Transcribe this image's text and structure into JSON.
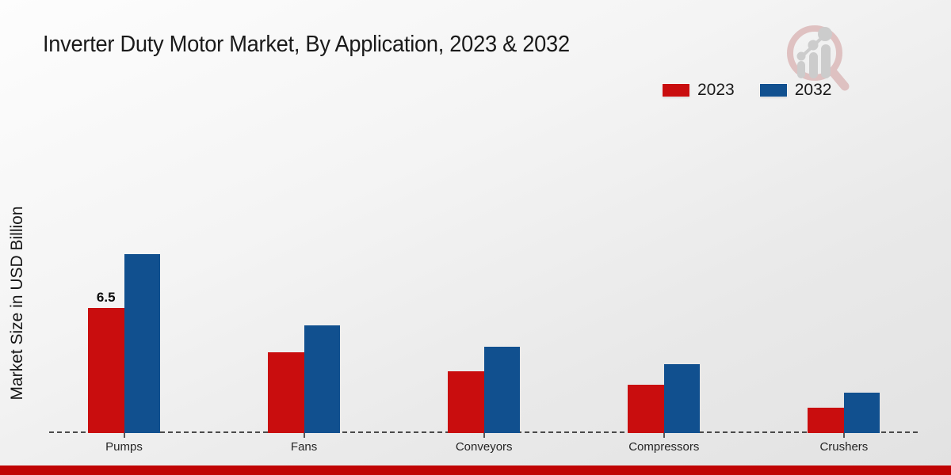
{
  "title": "Inverter Duty Motor Market, By Application, 2023 & 2032",
  "y_axis_label": "Market Size in USD Billion",
  "legend": [
    {
      "label": "2023",
      "color": "#c90d0e"
    },
    {
      "label": "2032",
      "color": "#11508f"
    }
  ],
  "colors": {
    "bar_2023": "#c90d0e",
    "bar_2032": "#11508f",
    "footer_strip": "#c00404",
    "baseline": "#4a4a4a",
    "title_text": "#1a1a1a"
  },
  "logo_icon": "magnifier-bar-chart-watermark",
  "chart_data": {
    "type": "bar",
    "categories": [
      "Pumps",
      "Fans",
      "Conveyors",
      "Compressors",
      "Crushers"
    ],
    "series": [
      {
        "name": "2023",
        "color": "#c90d0e",
        "values": [
          6.5,
          4.2,
          3.2,
          2.5,
          1.3
        ]
      },
      {
        "name": "2032",
        "color": "#11508f",
        "values": [
          9.3,
          5.6,
          4.5,
          3.6,
          2.1
        ]
      }
    ],
    "annotations": [
      {
        "category": "Pumps",
        "series": "2023",
        "text": "6.5"
      }
    ],
    "title": "Inverter Duty Motor Market, By Application, 2023 & 2032",
    "xlabel": "",
    "ylabel": "Market Size in USD Billion",
    "grid": false,
    "y_axis_ticks_visible": false,
    "legend_position": "top-right",
    "baseline_style": "dashed"
  }
}
